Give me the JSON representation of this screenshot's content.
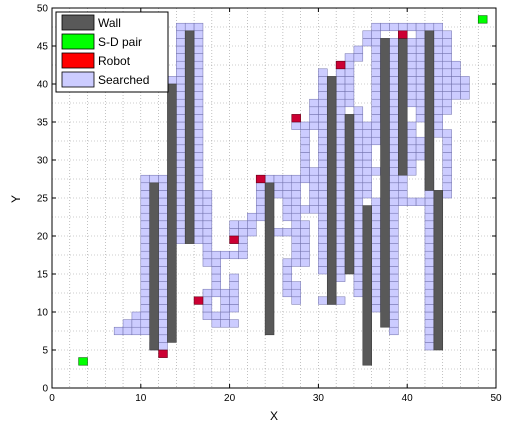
{
  "chart_data": {
    "type": "scatter",
    "title": "",
    "xlabel": "X",
    "ylabel": "Y",
    "xlim": [
      0,
      50
    ],
    "ylim": [
      0,
      50
    ],
    "xticks": [
      "0",
      "10",
      "20",
      "30",
      "40",
      "50"
    ],
    "yticks": [
      "0",
      "5",
      "10",
      "15",
      "20",
      "25",
      "30",
      "35",
      "40",
      "45",
      "50"
    ],
    "grid": true,
    "legend_position": "top-left",
    "legend": [
      {
        "name": "Wall",
        "color": "#595959"
      },
      {
        "name": "S-D pair",
        "color": "#00ff00"
      },
      {
        "name": "Robot",
        "color": "#ff0000"
      },
      {
        "name": "Searched",
        "color": "#ccccff"
      }
    ],
    "walls": [
      {
        "x": [
          11,
          12
        ],
        "y": [
          5,
          27
        ]
      },
      {
        "x": [
          13,
          14
        ],
        "y": [
          6,
          40
        ]
      },
      {
        "x": [
          15,
          16
        ],
        "y": [
          19,
          47
        ]
      },
      {
        "x": [
          24,
          25
        ],
        "y": [
          7,
          27
        ]
      },
      {
        "x": [
          31,
          32
        ],
        "y": [
          11,
          41
        ]
      },
      {
        "x": [
          33,
          34
        ],
        "y": [
          15,
          36
        ]
      },
      {
        "x": [
          35,
          36
        ],
        "y": [
          3,
          24
        ]
      },
      {
        "x": [
          37,
          38
        ],
        "y": [
          8,
          46
        ]
      },
      {
        "x": [
          39,
          40
        ],
        "y": [
          28,
          46
        ]
      },
      {
        "x": [
          42,
          43
        ],
        "y": [
          26,
          47
        ]
      },
      {
        "x": [
          43,
          44
        ],
        "y": [
          5,
          26
        ]
      }
    ],
    "sd_pairs": [
      [
        3,
        3
      ],
      [
        48,
        48
      ]
    ],
    "robots": [
      [
        12,
        4
      ],
      [
        16,
        11
      ],
      [
        20,
        19
      ],
      [
        23,
        27
      ],
      [
        27,
        35
      ],
      [
        32,
        42
      ],
      [
        39,
        46
      ]
    ],
    "searched_rects": [
      [
        14,
        47,
        16,
        47
      ],
      [
        14,
        19,
        14,
        47
      ],
      [
        16,
        19,
        16,
        46
      ],
      [
        13,
        40,
        13,
        40
      ],
      [
        12,
        20,
        12,
        27
      ],
      [
        10,
        27,
        13,
        27
      ],
      [
        10,
        10,
        10,
        26
      ],
      [
        12,
        6,
        12,
        20
      ],
      [
        11,
        5,
        11,
        5
      ],
      [
        12,
        5,
        12,
        5
      ],
      [
        7,
        7,
        10,
        7
      ],
      [
        8,
        8,
        10,
        8
      ],
      [
        9,
        9,
        10,
        9
      ],
      [
        17,
        16,
        17,
        25
      ],
      [
        18,
        12,
        18,
        17
      ],
      [
        18,
        17,
        21,
        17
      ],
      [
        19,
        9,
        19,
        12
      ],
      [
        17,
        9,
        19,
        9
      ],
      [
        17,
        10,
        17,
        12
      ],
      [
        18,
        8,
        20,
        8
      ],
      [
        20,
        10,
        20,
        14
      ],
      [
        21,
        17,
        21,
        21
      ],
      [
        20,
        20,
        22,
        21
      ],
      [
        22,
        22,
        23,
        22
      ],
      [
        23,
        23,
        23,
        27
      ],
      [
        24,
        27,
        28,
        27
      ],
      [
        25,
        25,
        25,
        27
      ],
      [
        26,
        22,
        26,
        26
      ],
      [
        27,
        16,
        27,
        26
      ],
      [
        26,
        12,
        26,
        16
      ],
      [
        27,
        11,
        27,
        13
      ],
      [
        28,
        16,
        28,
        21
      ],
      [
        25,
        20,
        28,
        20
      ],
      [
        28,
        23,
        30,
        23
      ],
      [
        29,
        24,
        29,
        27
      ],
      [
        28,
        28,
        31,
        28
      ],
      [
        28,
        29,
        28,
        34
      ],
      [
        27,
        34,
        30,
        34
      ],
      [
        29,
        35,
        30,
        37
      ],
      [
        30,
        38,
        31,
        38
      ],
      [
        31,
        39,
        32,
        39
      ],
      [
        32,
        40,
        32,
        42
      ],
      [
        33,
        43,
        34,
        43
      ],
      [
        34,
        44,
        34,
        44
      ],
      [
        35,
        45,
        36,
        46
      ],
      [
        36,
        47,
        43,
        47
      ],
      [
        41,
        46,
        44,
        46
      ],
      [
        44,
        36,
        44,
        45
      ],
      [
        45,
        38,
        45,
        42
      ],
      [
        46,
        38,
        46,
        40
      ],
      [
        30,
        15,
        30,
        41
      ],
      [
        30,
        11,
        32,
        11
      ],
      [
        32,
        14,
        32,
        38
      ],
      [
        33,
        37,
        33,
        42
      ],
      [
        34,
        12,
        34,
        36
      ],
      [
        35,
        25,
        35,
        34
      ],
      [
        36,
        10,
        36,
        24
      ],
      [
        36,
        32,
        36,
        44
      ],
      [
        37,
        35,
        37,
        44
      ],
      [
        38,
        7,
        38,
        45
      ],
      [
        36,
        28,
        40,
        28
      ],
      [
        39,
        25,
        39,
        27
      ],
      [
        40,
        29,
        40,
        34
      ],
      [
        41,
        30,
        42,
        32
      ],
      [
        41,
        35,
        41,
        45
      ],
      [
        42,
        33,
        43,
        34
      ],
      [
        40,
        37,
        40,
        45
      ],
      [
        43,
        35,
        43,
        45
      ],
      [
        44,
        25,
        44,
        33
      ],
      [
        42,
        5,
        42,
        25
      ],
      [
        42,
        26,
        42,
        29
      ],
      [
        39,
        24,
        41,
        24
      ]
    ]
  }
}
